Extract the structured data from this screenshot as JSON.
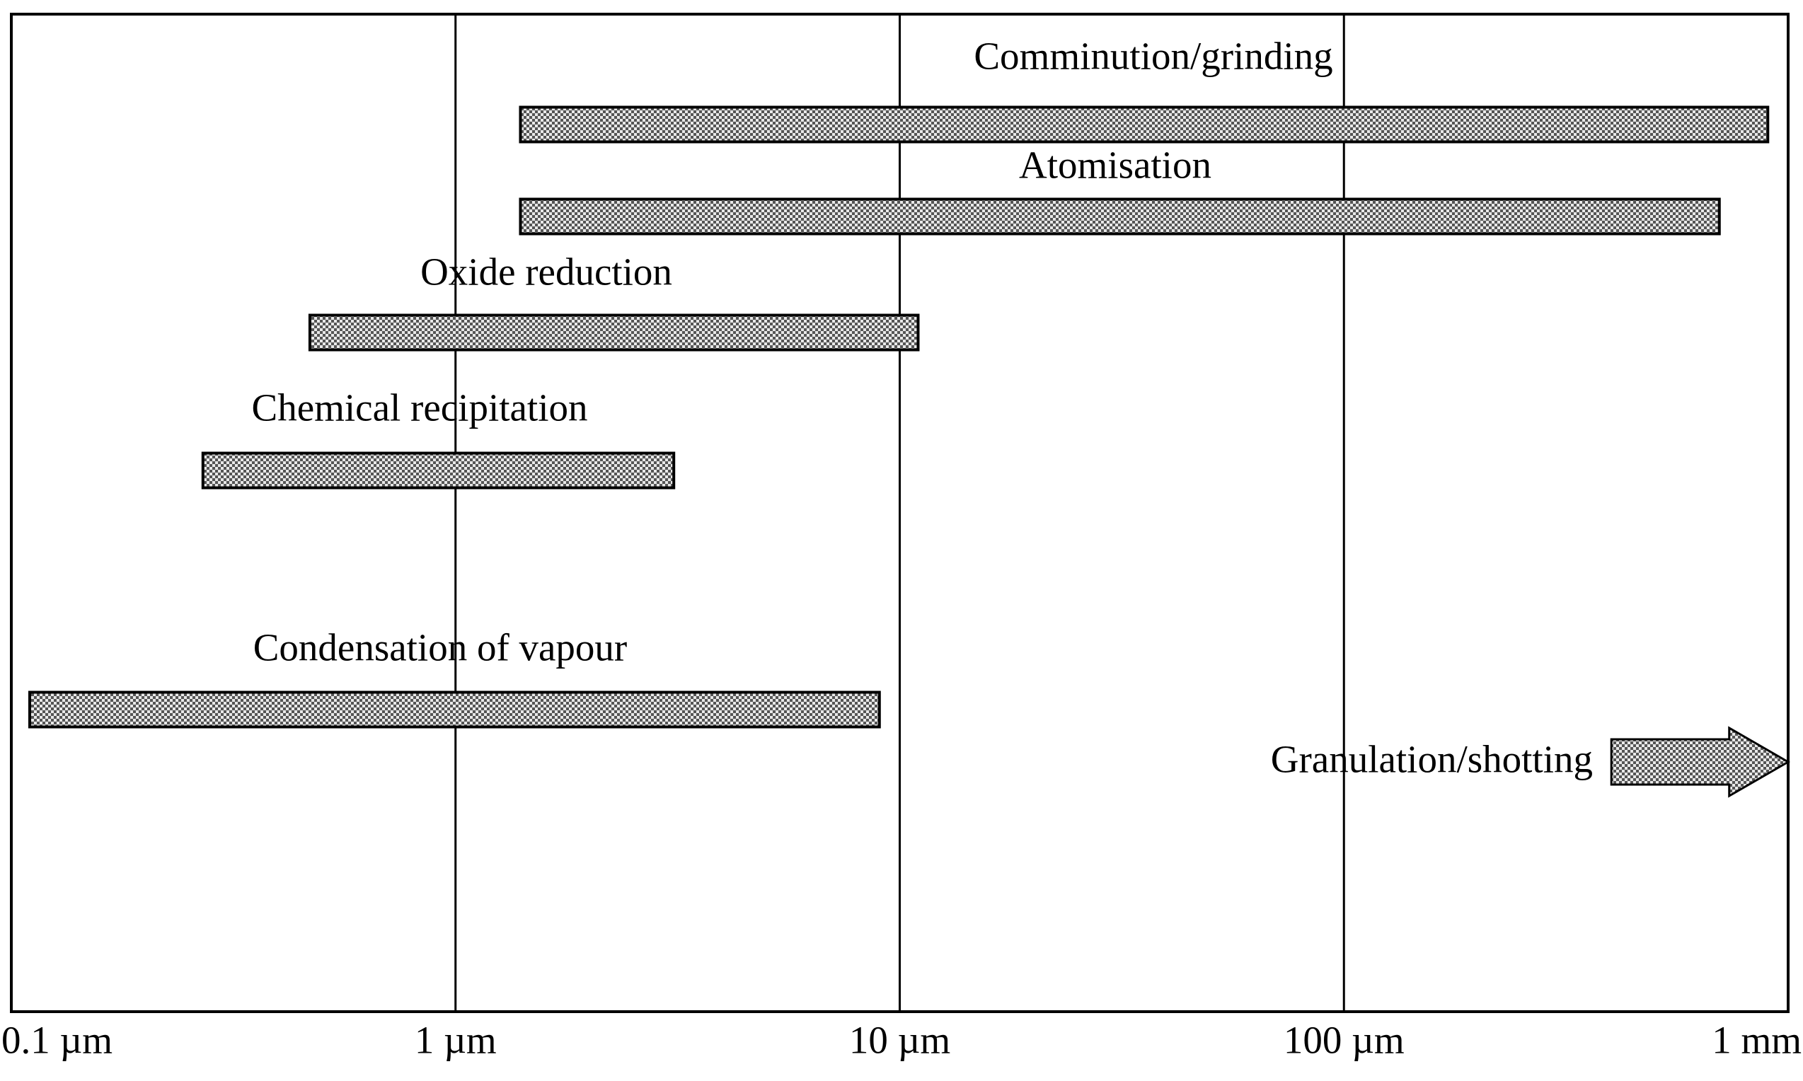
{
  "chart_data": {
    "type": "range_bar",
    "categories": [
      "Comminution/grinding",
      "Atomisation",
      "Oxide reduction",
      "Chemical recipitation",
      "Condensation of vapour",
      "Granulation/shotting"
    ],
    "start": [
      1.4,
      1.4,
      0.47,
      0.27,
      0.11,
      400
    ],
    "end": [
      900,
      700,
      11,
      3.1,
      9,
      1000
    ],
    "markers": [
      "bar",
      "bar",
      "bar",
      "bar",
      "bar",
      "arrow"
    ],
    "color": "#888888",
    "xscale": "log",
    "xlim": [
      0.1,
      1000
    ],
    "xticks": [
      {
        "value": 0.1,
        "label": "0.1 µm"
      },
      {
        "value": 1,
        "label": "1 µm"
      },
      {
        "value": 10,
        "label": "10 µm"
      },
      {
        "value": 100,
        "label": "100 µm"
      },
      {
        "value": 1000,
        "label": "1 mm"
      }
    ],
    "grid": true
  }
}
